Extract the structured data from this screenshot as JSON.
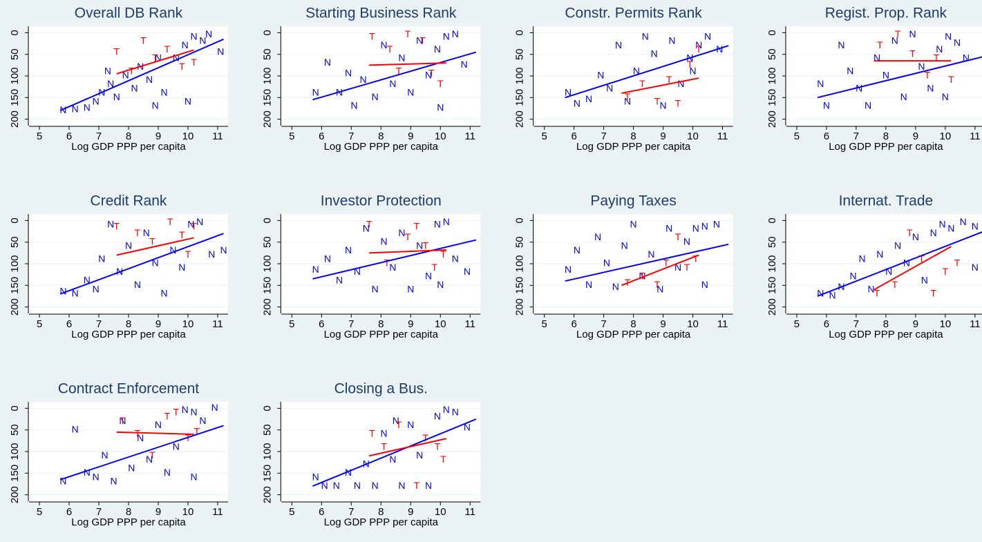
{
  "chart_data": [
    {
      "type": "scatter",
      "title": "Overall DB Rank",
      "xlabel": "Log GDP PPP per capita",
      "xlim": [
        4.65,
        11.35
      ],
      "ylim": [
        -15,
        215
      ],
      "y_reversed": true,
      "xticks": [
        5,
        6,
        7,
        8,
        9,
        10,
        11
      ],
      "yticks": [
        0,
        50,
        100,
        150,
        200
      ],
      "grid": true,
      "series": [
        {
          "name": "N",
          "color": "#0000ff",
          "x": [
            5.8,
            6.2,
            6.6,
            6.9,
            7.1,
            7.4,
            7.6,
            7.9,
            8.2,
            8.4,
            8.7,
            9.0,
            9.2,
            9.6,
            9.9,
            10.2,
            10.5,
            10.7,
            11.1,
            10.0,
            8.9,
            7.3
          ],
          "y": [
            180,
            178,
            175,
            160,
            140,
            120,
            150,
            100,
            130,
            80,
            110,
            60,
            140,
            60,
            30,
            10,
            20,
            5,
            45,
            160,
            170,
            90
          ],
          "fit_x": [
            5.7,
            11.2
          ],
          "fit_y": [
            180,
            15
          ]
        },
        {
          "name": "T",
          "color": "#ff0000",
          "x": [
            7.6,
            8.5,
            8.9,
            9.3,
            9.8,
            10.2,
            8.1
          ],
          "y": [
            45,
            20,
            60,
            40,
            80,
            70,
            90
          ],
          "fit_x": [
            7.6,
            10.2
          ],
          "fit_y": [
            95,
            40
          ]
        }
      ]
    },
    {
      "type": "scatter",
      "title": "Starting Business Rank",
      "xlabel": "Log GDP PPP per capita",
      "xlim": [
        4.65,
        11.35
      ],
      "ylim": [
        -15,
        215
      ],
      "y_reversed": true,
      "xticks": [
        5,
        6,
        7,
        8,
        9,
        10,
        11
      ],
      "yticks": [
        0,
        50,
        100,
        150,
        200
      ],
      "grid": true,
      "series": [
        {
          "name": "N",
          "color": "#0000ff",
          "x": [
            5.8,
            6.2,
            6.6,
            6.9,
            7.1,
            7.4,
            7.8,
            8.1,
            8.4,
            8.7,
            9.0,
            9.3,
            9.6,
            9.9,
            10.2,
            10.5,
            10.8,
            10.0
          ],
          "y": [
            140,
            70,
            140,
            95,
            170,
            110,
            150,
            30,
            120,
            60,
            140,
            20,
            100,
            40,
            10,
            5,
            75,
            175
          ],
          "fit_x": [
            5.7,
            11.2
          ],
          "fit_y": [
            155,
            45
          ]
        },
        {
          "name": "T",
          "color": "#ff0000",
          "x": [
            7.7,
            8.3,
            8.9,
            9.4,
            9.7,
            10.0,
            8.6
          ],
          "y": [
            10,
            40,
            5,
            20,
            95,
            120,
            90
          ],
          "fit_x": [
            7.6,
            10.2
          ],
          "fit_y": [
            75,
            70
          ]
        }
      ]
    },
    {
      "type": "scatter",
      "title": "Constr. Permits Rank",
      "xlabel": "Log GDP PPP per capita",
      "xlim": [
        4.65,
        11.35
      ],
      "ylim": [
        -15,
        215
      ],
      "y_reversed": true,
      "xticks": [
        5,
        6,
        7,
        8,
        9,
        10,
        11
      ],
      "yticks": [
        0,
        50,
        100,
        150,
        200
      ],
      "grid": true,
      "series": [
        {
          "name": "N",
          "color": "#0000ff",
          "x": [
            5.8,
            6.1,
            6.5,
            6.9,
            7.2,
            7.5,
            7.8,
            8.1,
            8.4,
            8.7,
            9.0,
            9.3,
            9.6,
            9.9,
            10.2,
            10.5,
            10.9,
            10.0
          ],
          "y": [
            140,
            165,
            155,
            100,
            130,
            30,
            160,
            90,
            10,
            50,
            170,
            20,
            120,
            60,
            30,
            10,
            40,
            90
          ],
          "fit_x": [
            5.7,
            11.2
          ],
          "fit_y": [
            150,
            30
          ]
        },
        {
          "name": "T",
          "color": "#ff0000",
          "x": [
            7.8,
            8.3,
            8.8,
            9.2,
            9.5,
            9.9,
            10.2
          ],
          "y": [
            150,
            120,
            160,
            110,
            165,
            75,
            40
          ],
          "fit_x": [
            7.6,
            10.2
          ],
          "fit_y": [
            140,
            105
          ]
        }
      ]
    },
    {
      "type": "scatter",
      "title": "Regist. Prop. Rank",
      "xlabel": "Log GDP PPP per capita",
      "xlim": [
        4.65,
        11.35
      ],
      "ylim": [
        -15,
        215
      ],
      "y_reversed": true,
      "xticks": [
        5,
        6,
        7,
        8,
        9,
        10,
        11
      ],
      "yticks": [
        0,
        50,
        100,
        150,
        200
      ],
      "grid": true,
      "series": [
        {
          "name": "N",
          "color": "#0000ff",
          "x": [
            5.8,
            6.0,
            6.5,
            6.8,
            7.1,
            7.4,
            7.7,
            8.0,
            8.3,
            8.6,
            8.9,
            9.2,
            9.5,
            9.8,
            10.1,
            10.4,
            10.7,
            10.0
          ],
          "y": [
            120,
            170,
            30,
            90,
            130,
            170,
            60,
            100,
            20,
            150,
            5,
            80,
            130,
            40,
            10,
            25,
            60,
            150
          ],
          "fit_x": [
            5.7,
            11.3
          ],
          "fit_y": [
            150,
            55
          ]
        },
        {
          "name": "T",
          "color": "#ff0000",
          "x": [
            7.8,
            8.4,
            8.9,
            9.4,
            9.7,
            10.2
          ],
          "y": [
            30,
            5,
            50,
            100,
            60,
            110
          ],
          "fit_x": [
            7.6,
            10.2
          ],
          "fit_y": [
            65,
            65
          ]
        }
      ]
    },
    {
      "type": "scatter",
      "title": "Credit Rank",
      "xlabel": "Log GDP PPP per capita",
      "xlim": [
        4.65,
        11.35
      ],
      "ylim": [
        -15,
        215
      ],
      "y_reversed": true,
      "xticks": [
        5,
        6,
        7,
        8,
        9,
        10,
        11
      ],
      "yticks": [
        0,
        50,
        100,
        150,
        200
      ],
      "grid": true,
      "series": [
        {
          "name": "N",
          "color": "#0000ff",
          "x": [
            5.8,
            6.2,
            6.6,
            6.9,
            7.1,
            7.4,
            7.7,
            8.0,
            8.3,
            8.6,
            8.9,
            9.2,
            9.5,
            9.8,
            10.1,
            10.4,
            10.8,
            11.2
          ],
          "y": [
            165,
            170,
            140,
            160,
            90,
            10,
            120,
            60,
            150,
            30,
            100,
            170,
            70,
            110,
            10,
            5,
            80,
            70
          ],
          "fit_x": [
            5.7,
            11.2
          ],
          "fit_y": [
            170,
            30
          ]
        },
        {
          "name": "T",
          "color": "#ff0000",
          "x": [
            7.6,
            8.3,
            8.8,
            9.4,
            9.8,
            10.0,
            10.2
          ],
          "y": [
            15,
            30,
            50,
            5,
            35,
            80,
            15
          ],
          "fit_x": [
            7.6,
            10.2
          ],
          "fit_y": [
            80,
            40
          ]
        }
      ]
    },
    {
      "type": "scatter",
      "title": "Investor Protection",
      "xlabel": "Log GDP PPP per capita",
      "xlim": [
        4.65,
        11.35
      ],
      "ylim": [
        -15,
        215
      ],
      "y_reversed": true,
      "xticks": [
        5,
        6,
        7,
        8,
        9,
        10,
        11
      ],
      "yticks": [
        0,
        50,
        100,
        150,
        200
      ],
      "grid": true,
      "series": [
        {
          "name": "N",
          "color": "#0000ff",
          "x": [
            5.8,
            6.2,
            6.6,
            6.9,
            7.2,
            7.5,
            7.8,
            8.1,
            8.4,
            8.7,
            9.0,
            9.3,
            9.6,
            9.9,
            10.2,
            10.5,
            10.9,
            10.0
          ],
          "y": [
            115,
            90,
            140,
            70,
            120,
            20,
            160,
            50,
            110,
            30,
            160,
            60,
            130,
            10,
            5,
            90,
            120,
            150
          ],
          "fit_x": [
            5.7,
            11.2
          ],
          "fit_y": [
            135,
            45
          ]
        },
        {
          "name": "T",
          "color": "#ff0000",
          "x": [
            7.6,
            8.2,
            8.9,
            9.2,
            9.5,
            9.8,
            10.1
          ],
          "y": [
            10,
            100,
            40,
            15,
            60,
            110,
            80
          ],
          "fit_x": [
            7.6,
            10.2
          ],
          "fit_y": [
            75,
            68
          ]
        }
      ]
    },
    {
      "type": "scatter",
      "title": "Paying Taxes",
      "xlabel": "Log GDP PPP per capita",
      "xlim": [
        4.65,
        11.35
      ],
      "ylim": [
        -15,
        215
      ],
      "y_reversed": true,
      "xticks": [
        5,
        6,
        7,
        8,
        9,
        10,
        11
      ],
      "yticks": [
        0,
        50,
        100,
        150,
        200
      ],
      "grid": true,
      "series": [
        {
          "name": "N",
          "color": "#0000ff",
          "x": [
            5.8,
            6.1,
            6.5,
            6.8,
            7.1,
            7.4,
            7.7,
            8.0,
            8.3,
            8.6,
            8.9,
            9.2,
            9.5,
            9.8,
            10.1,
            10.4,
            10.8,
            10.4
          ],
          "y": [
            115,
            70,
            150,
            40,
            100,
            155,
            60,
            10,
            130,
            80,
            160,
            20,
            110,
            50,
            20,
            15,
            10,
            150
          ],
          "fit_x": [
            5.7,
            11.2
          ],
          "fit_y": [
            140,
            55
          ]
        },
        {
          "name": "T",
          "color": "#ff0000",
          "x": [
            7.8,
            8.3,
            8.8,
            9.1,
            9.5,
            9.8,
            10.1
          ],
          "y": [
            145,
            130,
            150,
            100,
            40,
            110,
            90
          ],
          "fit_x": [
            7.6,
            10.2
          ],
          "fit_y": [
            150,
            80
          ]
        }
      ]
    },
    {
      "type": "scatter",
      "title": "Internat. Trade",
      "xlabel": "Log GDP PPP per capita",
      "xlim": [
        4.65,
        11.35
      ],
      "ylim": [
        -15,
        215
      ],
      "y_reversed": true,
      "xticks": [
        5,
        6,
        7,
        8,
        9,
        10,
        11
      ],
      "yticks": [
        0,
        50,
        100,
        150,
        200
      ],
      "grid": true,
      "series": [
        {
          "name": "N",
          "color": "#0000ff",
          "x": [
            5.8,
            6.2,
            6.5,
            6.9,
            7.2,
            7.5,
            7.8,
            8.1,
            8.4,
            8.7,
            9.0,
            9.3,
            9.6,
            9.9,
            10.2,
            10.6,
            11.0,
            11.0
          ],
          "y": [
            170,
            175,
            155,
            130,
            90,
            160,
            80,
            120,
            60,
            100,
            40,
            140,
            30,
            10,
            20,
            5,
            15,
            110
          ],
          "fit_x": [
            5.7,
            11.3
          ],
          "fit_y": [
            175,
            25
          ]
        },
        {
          "name": "T",
          "color": "#ff0000",
          "x": [
            7.7,
            8.3,
            8.8,
            9.2,
            9.6,
            10.0,
            10.4
          ],
          "y": [
            170,
            150,
            30,
            90,
            170,
            120,
            100
          ],
          "fit_x": [
            7.6,
            10.2
          ],
          "fit_y": [
            160,
            60
          ]
        }
      ]
    },
    {
      "type": "scatter",
      "title": "Contract Enforcement",
      "xlabel": "Log GDP PPP per capita",
      "xlim": [
        4.65,
        11.35
      ],
      "ylim": [
        -15,
        215
      ],
      "y_reversed": true,
      "xticks": [
        5,
        6,
        7,
        8,
        9,
        10,
        11
      ],
      "yticks": [
        0,
        50,
        100,
        150,
        200
      ],
      "grid": true,
      "series": [
        {
          "name": "N",
          "color": "#0000ff",
          "x": [
            5.8,
            6.2,
            6.6,
            6.9,
            7.2,
            7.5,
            7.8,
            8.1,
            8.4,
            8.7,
            9.0,
            9.3,
            9.6,
            9.9,
            10.2,
            10.5,
            10.9,
            10.2
          ],
          "y": [
            170,
            50,
            150,
            160,
            110,
            170,
            30,
            140,
            70,
            120,
            40,
            150,
            90,
            5,
            10,
            30,
            0,
            160
          ],
          "fit_x": [
            5.7,
            11.2
          ],
          "fit_y": [
            165,
            40
          ]
        },
        {
          "name": "T",
          "color": "#ff0000",
          "x": [
            7.8,
            8.3,
            8.8,
            9.3,
            9.6,
            10.0,
            10.3
          ],
          "y": [
            30,
            60,
            110,
            20,
            10,
            70,
            55
          ],
          "fit_x": [
            7.6,
            10.2
          ],
          "fit_y": [
            55,
            60
          ]
        }
      ]
    },
    {
      "type": "scatter",
      "title": "Closing a Bus.",
      "xlabel": "Log GDP PPP per capita",
      "xlim": [
        4.65,
        11.35
      ],
      "ylim": [
        -15,
        215
      ],
      "y_reversed": true,
      "xticks": [
        5,
        6,
        7,
        8,
        9,
        10,
        11
      ],
      "yticks": [
        0,
        50,
        100,
        150,
        200
      ],
      "grid": true,
      "series": [
        {
          "name": "N",
          "color": "#0000ff",
          "x": [
            5.8,
            6.1,
            6.5,
            6.9,
            7.2,
            7.5,
            7.8,
            8.1,
            8.4,
            8.7,
            9.0,
            9.3,
            9.6,
            9.9,
            10.2,
            10.5,
            10.9,
            8.5
          ],
          "y": [
            160,
            180,
            180,
            150,
            180,
            130,
            180,
            60,
            120,
            180,
            40,
            110,
            180,
            20,
            5,
            10,
            45,
            30
          ],
          "fit_x": [
            5.7,
            11.2
          ],
          "fit_y": [
            180,
            25
          ]
        },
        {
          "name": "T",
          "color": "#ff0000",
          "x": [
            7.7,
            8.1,
            8.6,
            9.2,
            9.5,
            9.9,
            10.1
          ],
          "y": [
            60,
            90,
            40,
            180,
            70,
            90,
            120
          ],
          "fit_x": [
            7.6,
            10.2
          ],
          "fit_y": [
            110,
            70
          ]
        }
      ]
    }
  ]
}
